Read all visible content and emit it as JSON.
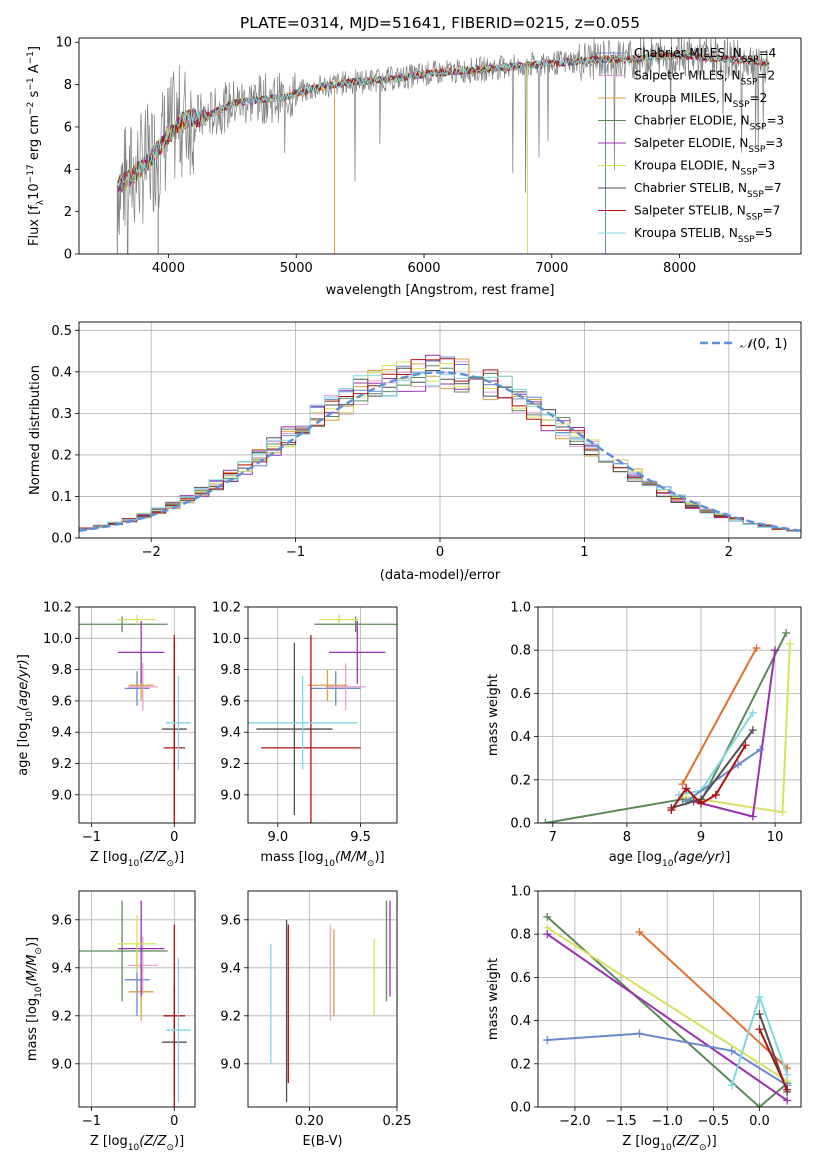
{
  "colors": {
    "c0": "#6a89cc",
    "c1": "#e8a0d0",
    "c2": "#d8a040",
    "c3": "#5a8a5a",
    "c4": "#9a30b0",
    "c5": "#d8e060",
    "c6": "#505050",
    "c7": "#b01010",
    "c8": "#80d8e0",
    "data": "#808080",
    "orange": "#e07030",
    "gaussian": "#5b8fd8"
  },
  "chart_data": [
    {
      "id": "spectrum",
      "type": "line",
      "title": "PLATE=0314, MJD=51641, FIBERID=0215, z=0.055",
      "xlabel": "wavelength [Angstrom, rest frame]",
      "ylabel": "Flux [f",
      "xlim": [
        3300,
        8950
      ],
      "ylim": [
        0,
        10.2
      ],
      "xticks": [
        4000,
        5000,
        6000,
        7000,
        8000
      ],
      "yticks": [
        0,
        2,
        4,
        6,
        8,
        10
      ],
      "legend_position": "top-right",
      "legend": [
        {
          "pre": "Chabrier MILES, N",
          "sub": "SSP",
          "post": "=4",
          "color": "c0"
        },
        {
          "pre": "Salpeter MILES, N",
          "sub": "SSP",
          "post": "=2",
          "color": "c1"
        },
        {
          "pre": "Kroupa MILES, N",
          "sub": "SSP",
          "post": "=2",
          "color": "c2"
        },
        {
          "pre": "Chabrier ELODIE, N",
          "sub": "SSP",
          "post": "=3",
          "color": "c3"
        },
        {
          "pre": "Salpeter ELODIE, N",
          "sub": "SSP",
          "post": "=3",
          "color": "c4"
        },
        {
          "pre": "Kroupa ELODIE, N",
          "sub": "SSP",
          "post": "=3",
          "color": "c5"
        },
        {
          "pre": "Chabrier STELIB, N",
          "sub": "SSP",
          "post": "=7",
          "color": "c6"
        },
        {
          "pre": "Salpeter STELIB, N",
          "sub": "SSP",
          "post": "=7",
          "color": "c7"
        },
        {
          "pre": "Kroupa STELIB, N",
          "sub": "SSP",
          "post": "=5",
          "color": "c8"
        }
      ],
      "continuum": [
        [
          3600,
          3.2
        ],
        [
          3700,
          3.6
        ],
        [
          3800,
          4.1
        ],
        [
          3900,
          4.8
        ],
        [
          4000,
          5.6
        ],
        [
          4100,
          6.3
        ],
        [
          4200,
          6.4
        ],
        [
          4300,
          6.5
        ],
        [
          4400,
          6.8
        ],
        [
          4500,
          7.1
        ],
        [
          4700,
          7.3
        ],
        [
          4900,
          7.4
        ],
        [
          5000,
          7.6
        ],
        [
          5200,
          7.9
        ],
        [
          5400,
          8.1
        ],
        [
          5600,
          8.2
        ],
        [
          5800,
          8.3
        ],
        [
          6000,
          8.5
        ],
        [
          6200,
          8.6
        ],
        [
          6400,
          8.7
        ],
        [
          6600,
          8.8
        ],
        [
          6800,
          8.9
        ],
        [
          7000,
          9.0
        ],
        [
          7200,
          9.1
        ],
        [
          7400,
          9.2
        ],
        [
          7600,
          9.2
        ],
        [
          7800,
          9.3
        ],
        [
          8000,
          9.4
        ],
        [
          8200,
          9.3
        ],
        [
          8400,
          9.2
        ],
        [
          8600,
          9.1
        ],
        [
          8700,
          9.0
        ]
      ],
      "spikes": [
        [
          5300,
          0,
          "c2"
        ],
        [
          6810,
          0,
          "c5"
        ],
        [
          3600,
          0,
          "data"
        ],
        [
          3920,
          0,
          "data"
        ],
        [
          7420,
          0,
          "c0"
        ]
      ]
    },
    {
      "id": "residuals",
      "type": "step",
      "xlabel": "(data-model)/error",
      "ylabel": "Normed distribution",
      "xlim": [
        -2.5,
        2.5
      ],
      "ylim": [
        0,
        0.52
      ],
      "xticks": [
        -2,
        -1,
        0,
        1,
        2
      ],
      "xticklabels": [
        "−2",
        "−1",
        "0",
        "1",
        "2"
      ],
      "yticks": [
        0,
        0.1,
        0.2,
        0.3,
        0.4,
        0.5
      ],
      "yticklabels": [
        "0.0",
        "0.1",
        "0.2",
        "0.3",
        "0.4",
        "0.5"
      ],
      "legend_position": "top-right",
      "legend": [
        {
          "label": "𝒩(0, 1)",
          "color": "gaussian"
        }
      ],
      "bin_width": 0.1
    },
    {
      "id": "age-vs-Z",
      "type": "errorbar",
      "xlabel_pre": "Z [log",
      "xlabel_sub": "10",
      "xlabel_post": "(Z/Z",
      "xlabel_end": ")]",
      "ylabel": "age  [log",
      "xlim": [
        -1.15,
        0.25
      ],
      "ylim": [
        8.82,
        10.2
      ],
      "xticks": [
        -1,
        0
      ],
      "xticklabels": [
        "−1",
        "0"
      ],
      "yticks": [
        9.0,
        9.2,
        9.4,
        9.6,
        9.8,
        10.0,
        10.2
      ],
      "yticklabels": [
        "9.0",
        "9.2",
        "9.4",
        "9.6",
        "9.8",
        "10.0",
        "10.2"
      ],
      "points": [
        {
          "x": -0.45,
          "xe": 0.15,
          "y": 9.68,
          "ye": 0.11,
          "c": "c0"
        },
        {
          "x": -0.38,
          "xe": 0.18,
          "y": 9.69,
          "ye": 0.15,
          "c": "c1"
        },
        {
          "x": -0.4,
          "xe": 0.15,
          "y": 9.7,
          "ye": 0.1,
          "c": "c2"
        },
        {
          "x": -0.63,
          "xe": 0.55,
          "y": 10.09,
          "ye": 0.05,
          "c": "c3"
        },
        {
          "x": -0.4,
          "xe": 0.28,
          "y": 9.91,
          "ye": 0.2,
          "c": "c4"
        },
        {
          "x": -0.45,
          "xe": 0.23,
          "y": 10.12,
          "ye": 0.03,
          "c": "c5"
        },
        {
          "x": 0.0,
          "xe": 0.15,
          "y": 9.42,
          "ye": 0.55,
          "c": "c6"
        },
        {
          "x": 0.0,
          "xe": 0.13,
          "y": 9.3,
          "ye": 0.72,
          "c": "c7"
        },
        {
          "x": 0.05,
          "xe": 0.15,
          "y": 9.46,
          "ye": 0.3,
          "c": "c8"
        }
      ]
    },
    {
      "id": "age-vs-mass",
      "type": "errorbar",
      "xlabel_pre": "mass [log",
      "xlabel_sub": "10",
      "xlabel_post": "(M/M",
      "xlabel_end": ")]",
      "xlim": [
        8.82,
        9.72
      ],
      "ylim": [
        8.82,
        10.2
      ],
      "xticks": [
        9.0,
        9.5
      ],
      "xticklabels": [
        "9.0",
        "9.5"
      ],
      "yticks": [
        9.0,
        9.2,
        9.4,
        9.6,
        9.8,
        10.0,
        10.2
      ],
      "yticklabels": [
        "9.0",
        "9.2",
        "9.4",
        "9.6",
        "9.8",
        "10.0",
        "10.2"
      ],
      "points": [
        {
          "x": 9.35,
          "xe": 0.15,
          "y": 9.68,
          "ye": 0.11,
          "c": "c0"
        },
        {
          "x": 9.41,
          "xe": 0.12,
          "y": 9.69,
          "ye": 0.15,
          "c": "c1"
        },
        {
          "x": 9.3,
          "xe": 0.12,
          "y": 9.7,
          "ye": 0.1,
          "c": "c2"
        },
        {
          "x": 9.47,
          "xe": 0.25,
          "y": 10.09,
          "ye": 0.05,
          "c": "c3"
        },
        {
          "x": 9.48,
          "xe": 0.17,
          "y": 9.91,
          "ye": 0.2,
          "c": "c4"
        },
        {
          "x": 9.37,
          "xe": 0.12,
          "y": 10.12,
          "ye": 0.03,
          "c": "c5"
        },
        {
          "x": 9.1,
          "xe": 0.23,
          "y": 9.42,
          "ye": 0.55,
          "c": "c6"
        },
        {
          "x": 9.2,
          "xe": 0.3,
          "y": 9.3,
          "ye": 0.72,
          "c": "c7"
        },
        {
          "x": 9.15,
          "xe": 0.33,
          "y": 9.46,
          "ye": 0.3,
          "c": "c8"
        }
      ]
    },
    {
      "id": "mass-weight-vs-age",
      "type": "line",
      "xlabel": "age  [log",
      "ylabel": "mass weight",
      "xlim": [
        6.8,
        10.35
      ],
      "ylim": [
        0,
        1
      ],
      "xticks": [
        7,
        8,
        9,
        10
      ],
      "xticklabels": [
        "7",
        "8",
        "9",
        "10"
      ],
      "yticks": [
        0,
        0.2,
        0.4,
        0.6,
        0.8,
        1.0
      ],
      "yticklabels": [
        "0.0",
        "0.2",
        "0.4",
        "0.6",
        "0.8",
        "1.0"
      ],
      "series": [
        {
          "c": "c3",
          "pts": [
            [
              6.9,
              0.0
            ],
            [
              8.75,
              0.11
            ],
            [
              9.0,
              0.1
            ],
            [
              10.15,
              0.88
            ]
          ]
        },
        {
          "c": "orange",
          "pts": [
            [
              8.75,
              0.18
            ],
            [
              9.75,
              0.81
            ]
          ]
        },
        {
          "c": "c5",
          "pts": [
            [
              8.8,
              0.12
            ],
            [
              10.1,
              0.05
            ],
            [
              10.2,
              0.83
            ]
          ]
        },
        {
          "c": "c8",
          "pts": [
            [
              8.7,
              0.13
            ],
            [
              9.0,
              0.15
            ],
            [
              9.7,
              0.51
            ]
          ]
        },
        {
          "c": "c4",
          "pts": [
            [
              8.9,
              0.1
            ],
            [
              9.7,
              0.03
            ],
            [
              10.0,
              0.8
            ]
          ]
        },
        {
          "c": "c0",
          "pts": [
            [
              8.8,
              0.1
            ],
            [
              9.5,
              0.27
            ],
            [
              9.8,
              0.34
            ]
          ]
        },
        {
          "c": "c6",
          "pts": [
            [
              8.6,
              0.07
            ],
            [
              9.0,
              0.11
            ],
            [
              9.7,
              0.43
            ]
          ]
        },
        {
          "c": "c7",
          "pts": [
            [
              8.6,
              0.06
            ],
            [
              8.8,
              0.16
            ],
            [
              9.0,
              0.09
            ],
            [
              9.2,
              0.13
            ],
            [
              9.6,
              0.36
            ]
          ]
        }
      ]
    },
    {
      "id": "mass-vs-Z",
      "type": "errorbar",
      "xlabel_pre": "Z [log",
      "xlabel_sub": "10",
      "xlabel_post": "(Z/Z",
      "xlabel_end": ")]",
      "ylabel": "mass [log",
      "xlim": [
        -1.15,
        0.25
      ],
      "ylim": [
        8.82,
        9.72
      ],
      "xticks": [
        -1,
        0
      ],
      "xticklabels": [
        "−1",
        "0"
      ],
      "yticks": [
        9.0,
        9.2,
        9.4,
        9.6
      ],
      "yticklabels": [
        "9.0",
        "9.2",
        "9.4",
        "9.6"
      ],
      "points": [
        {
          "x": -0.45,
          "xe": 0.15,
          "y": 9.35,
          "ye": 0.15,
          "c": "c0"
        },
        {
          "x": -0.38,
          "xe": 0.18,
          "y": 9.41,
          "ye": 0.12,
          "c": "c1"
        },
        {
          "x": -0.4,
          "xe": 0.15,
          "y": 9.3,
          "ye": 0.12,
          "c": "c2"
        },
        {
          "x": -0.63,
          "xe": 0.55,
          "y": 9.47,
          "ye": 0.21,
          "c": "c3"
        },
        {
          "x": -0.4,
          "xe": 0.28,
          "y": 9.48,
          "ye": 0.2,
          "c": "c4"
        },
        {
          "x": -0.45,
          "xe": 0.23,
          "y": 9.5,
          "ye": 0.12,
          "c": "c5"
        },
        {
          "x": 0.0,
          "xe": 0.15,
          "y": 9.09,
          "ye": 0.23,
          "c": "c6"
        },
        {
          "x": 0.0,
          "xe": 0.13,
          "y": 9.2,
          "ye": 0.38,
          "c": "c7"
        },
        {
          "x": 0.05,
          "xe": 0.15,
          "y": 9.14,
          "ye": 0.3,
          "c": "c8"
        }
      ]
    },
    {
      "id": "mass-vs-ebv",
      "type": "errorbar",
      "xlabel": "E(B-V)",
      "xlim": [
        0.165,
        0.25
      ],
      "ylim": [
        8.82,
        9.72
      ],
      "xticks": [
        0.2,
        0.25
      ],
      "xticklabels": [
        "0.20",
        "0.25"
      ],
      "yticks": [
        9.0,
        9.2,
        9.4,
        9.6
      ],
      "yticklabels": [
        "9.0",
        "9.2",
        "9.4",
        "9.6"
      ],
      "points": [
        {
          "x": 0.178,
          "xe": 0,
          "y": 9.25,
          "ye": 0.25,
          "c": "c8"
        },
        {
          "x": 0.212,
          "xe": 0,
          "y": 9.38,
          "ye": 0.2,
          "c": "c1"
        },
        {
          "x": 0.214,
          "xe": 0,
          "y": 9.38,
          "ye": 0.18,
          "c": "c2"
        },
        {
          "x": 0.188,
          "xe": 0,
          "y": 9.25,
          "ye": 0.33,
          "c": "c7"
        },
        {
          "x": 0.187,
          "xe": 0,
          "y": 9.22,
          "ye": 0.38,
          "c": "c6"
        },
        {
          "x": 0.237,
          "xe": 0,
          "y": 9.36,
          "ye": 0.16,
          "c": "c5"
        },
        {
          "x": 0.244,
          "xe": 0,
          "y": 9.47,
          "ye": 0.21,
          "c": "c3"
        },
        {
          "x": 0.246,
          "xe": 0,
          "y": 9.48,
          "ye": 0.2,
          "c": "c4"
        }
      ]
    },
    {
      "id": "mass-weight-vs-Z",
      "type": "line",
      "xlabel_pre": "Z [log",
      "xlabel_sub": "10",
      "xlabel_post": "(Z/Z",
      "xlabel_end": ")]",
      "ylabel": "mass weight",
      "xlim": [
        -2.4,
        0.45
      ],
      "ylim": [
        0,
        1
      ],
      "xticks": [
        -2.0,
        -1.5,
        -1.0,
        -0.5,
        0.0
      ],
      "xticklabels": [
        "−2.0",
        "−1.5",
        "−1.0",
        "−0.5",
        "0.0"
      ],
      "yticks": [
        0,
        0.2,
        0.4,
        0.6,
        0.8,
        1.0
      ],
      "yticklabels": [
        "0.0",
        "0.2",
        "0.4",
        "0.6",
        "0.8",
        "1.0"
      ],
      "series": [
        {
          "c": "c3",
          "pts": [
            [
              -2.3,
              0.88
            ],
            [
              0.0,
              0.0
            ],
            [
              0.3,
              0.11
            ]
          ]
        },
        {
          "c": "c5",
          "pts": [
            [
              -2.3,
              0.83
            ],
            [
              0.3,
              0.12
            ]
          ]
        },
        {
          "c": "c4",
          "pts": [
            [
              -2.3,
              0.8
            ],
            [
              0.3,
              0.03
            ]
          ]
        },
        {
          "c": "orange",
          "pts": [
            [
              -1.3,
              0.81
            ],
            [
              0.3,
              0.18
            ]
          ]
        },
        {
          "c": "c0",
          "pts": [
            [
              -2.3,
              0.31
            ],
            [
              -1.3,
              0.34
            ],
            [
              -0.3,
              0.26
            ],
            [
              0.3,
              0.1
            ]
          ]
        },
        {
          "c": "c8",
          "pts": [
            [
              -0.3,
              0.1
            ],
            [
              0.0,
              0.51
            ],
            [
              0.3,
              0.15
            ]
          ]
        },
        {
          "c": "c6",
          "pts": [
            [
              0.0,
              0.43
            ],
            [
              0.3,
              0.07
            ]
          ]
        },
        {
          "c": "c7",
          "pts": [
            [
              0.0,
              0.36
            ],
            [
              0.3,
              0.08
            ]
          ]
        }
      ]
    }
  ]
}
